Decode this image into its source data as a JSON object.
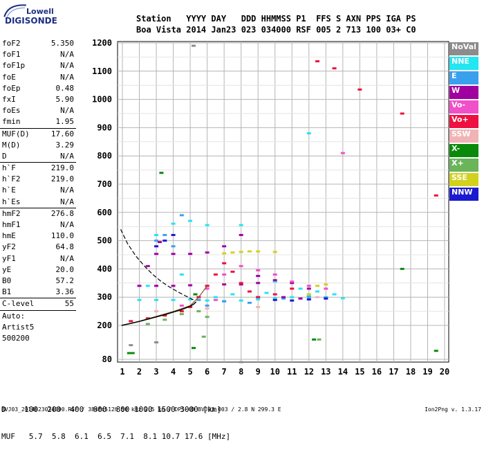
{
  "logo": {
    "line1": "Lowell",
    "line2": "DIGISONDE"
  },
  "header": {
    "row1": "Station   YYYY DAY   DDD HHMMSS P1  FFS S AXN PPS IGA PS",
    "row2": "Boa Vista 2014 Jan23 023 034000 RSF 005 2 713 100 03+ C0"
  },
  "params": [
    {
      "label": "foF2",
      "value": "5.350"
    },
    {
      "label": "foF1",
      "value": "N/A"
    },
    {
      "label": "foF1p",
      "value": "N/A"
    },
    {
      "label": "foE",
      "value": "N/A"
    },
    {
      "label": "foEp",
      "value": "0.48"
    },
    {
      "label": "fxI",
      "value": "5.90"
    },
    {
      "label": "foEs",
      "value": "N/A"
    },
    {
      "label": "fmin",
      "value": "1.95"
    },
    {
      "sep": true
    },
    {
      "label": "MUF(D)",
      "value": "17.60"
    },
    {
      "label": "M(D)",
      "value": "3.29"
    },
    {
      "label": "D",
      "value": "N/A"
    },
    {
      "sep": true
    },
    {
      "label": "h`F",
      "value": "219.0"
    },
    {
      "label": "h`F2",
      "value": "219.0"
    },
    {
      "label": "h`E",
      "value": "N/A"
    },
    {
      "label": "h`Es",
      "value": "N/A"
    },
    {
      "sep": true
    },
    {
      "label": "hmF2",
      "value": "276.8"
    },
    {
      "label": "hmF1",
      "value": "N/A"
    },
    {
      "label": "hmE",
      "value": "110.0"
    },
    {
      "label": "yF2",
      "value": "64.8"
    },
    {
      "label": "yF1",
      "value": "N/A"
    },
    {
      "label": "yE",
      "value": "20.0"
    },
    {
      "label": "B0",
      "value": "57.2"
    },
    {
      "label": "B1",
      "value": "3.36"
    },
    {
      "sep": true
    },
    {
      "label": "C-level",
      "value": "55"
    },
    {
      "sep": true
    },
    {
      "label": "Auto:",
      "value": ""
    },
    {
      "label": "Artist5",
      "value": ""
    },
    {
      "label": "500200",
      "value": ""
    }
  ],
  "legend": [
    {
      "label": "NoVal",
      "color": "#8c8c8c"
    },
    {
      "label": "NNE",
      "color": "#22e6f0"
    },
    {
      "label": "E",
      "color": "#3aa0ee"
    },
    {
      "label": "W",
      "color": "#a000a0"
    },
    {
      "label": "Vo-",
      "color": "#f050c8"
    },
    {
      "label": "Vo+",
      "color": "#ee1040"
    },
    {
      "label": "SSW",
      "color": "#f0b4b4"
    },
    {
      "label": "X-",
      "color": "#0a8a0a"
    },
    {
      "label": "X+",
      "color": "#6ab45a"
    },
    {
      "label": "SSE",
      "color": "#d2d21e"
    },
    {
      "label": "NNW",
      "color": "#1a1ad0"
    }
  ],
  "bottom": {
    "d_row": "D    100  200  400  600  800 1000 1500 3000 [km]",
    "muf_row": "MUF   5.7  5.8  6.1  6.5  7.1  8.1 10.7 17.6 [MHz]"
  },
  "footer": {
    "left": "BVJ03_2014023034000.RSF / 384fx512h 50 kHz 2.5 km / DPS-4D BVJ03 003 / 2.8 N 299.3 E",
    "right": "Ion2Png v. 1.3.17"
  },
  "chart_data": {
    "type": "scatter",
    "title": "",
    "xlabel": "",
    "ylabel": "",
    "x_ticks": [
      1,
      2,
      3,
      4,
      5,
      6,
      7,
      8,
      9,
      10,
      11,
      12,
      13,
      14,
      15,
      16,
      17,
      18,
      19,
      20
    ],
    "y_ticks": [
      80,
      200,
      300,
      400,
      500,
      600,
      700,
      800,
      900,
      1000,
      1100,
      1200
    ],
    "xlim": [
      1,
      20
    ],
    "ylim": [
      80,
      1200
    ],
    "grid": true,
    "series": [
      {
        "name": "NNE",
        "color": "#22e6f0",
        "points": [
          [
            2.0,
            290
          ],
          [
            3.0,
            290
          ],
          [
            4.0,
            290
          ],
          [
            5.0,
            292
          ],
          [
            6.0,
            288
          ],
          [
            7.0,
            286
          ],
          [
            8.0,
            288
          ],
          [
            9.0,
            292
          ],
          [
            10.0,
            296
          ],
          [
            11.0,
            300
          ],
          [
            12.0,
            305
          ],
          [
            13.0,
            300
          ],
          [
            14.0,
            296
          ],
          [
            3.0,
            520
          ],
          [
            4.0,
            560
          ],
          [
            5.0,
            570
          ],
          [
            6.0,
            555
          ],
          [
            8.0,
            555
          ],
          [
            10.0,
            355
          ],
          [
            11.5,
            330
          ],
          [
            12.5,
            320
          ],
          [
            2.5,
            340
          ],
          [
            4.5,
            380
          ],
          [
            6.5,
            300
          ],
          [
            7.5,
            310
          ],
          [
            9.5,
            315
          ],
          [
            13.5,
            310
          ],
          [
            12.0,
            880
          ]
        ]
      },
      {
        "name": "E",
        "color": "#3aa0ee",
        "points": [
          [
            3.0,
            500
          ],
          [
            3.5,
            520
          ],
          [
            4.0,
            480
          ],
          [
            4.5,
            590
          ],
          [
            5.5,
            290
          ],
          [
            7.0,
            285
          ],
          [
            9.0,
            300
          ],
          [
            10.5,
            295
          ],
          [
            12.0,
            300
          ],
          [
            13.0,
            298
          ],
          [
            8.5,
            280
          ],
          [
            6.0,
            270
          ]
        ]
      },
      {
        "name": "W",
        "color": "#a000a0",
        "points": [
          [
            2.0,
            340
          ],
          [
            3.0,
            340
          ],
          [
            4.0,
            340
          ],
          [
            5.0,
            342
          ],
          [
            6.0,
            340
          ],
          [
            7.0,
            345
          ],
          [
            8.0,
            345
          ],
          [
            9.0,
            350
          ],
          [
            10.0,
            360
          ],
          [
            11.0,
            350
          ],
          [
            12.0,
            330
          ],
          [
            3.0,
            453
          ],
          [
            4.0,
            453
          ],
          [
            5.0,
            453
          ],
          [
            6.0,
            458
          ],
          [
            7.0,
            480
          ],
          [
            8.0,
            520
          ],
          [
            3.2,
            495
          ],
          [
            2.5,
            410
          ],
          [
            10.5,
            300
          ],
          [
            11.5,
            295
          ],
          [
            9.0,
            375
          ]
        ]
      },
      {
        "name": "Vo-",
        "color": "#f050c8",
        "points": [
          [
            4.5,
            270
          ],
          [
            5.5,
            300
          ],
          [
            6.0,
            330
          ],
          [
            7.0,
            380
          ],
          [
            8.0,
            410
          ],
          [
            9.0,
            395
          ],
          [
            10.0,
            380
          ],
          [
            11.0,
            355
          ],
          [
            12.0,
            340
          ],
          [
            13.0,
            330
          ],
          [
            14.0,
            810
          ],
          [
            6.5,
            290
          ]
        ]
      },
      {
        "name": "Vo+",
        "color": "#ee1040",
        "points": [
          [
            1.5,
            215
          ],
          [
            2.5,
            225
          ],
          [
            3.5,
            235
          ],
          [
            4.5,
            250
          ],
          [
            5.0,
            265
          ],
          [
            5.5,
            300
          ],
          [
            6.0,
            340
          ],
          [
            6.5,
            380
          ],
          [
            7.0,
            420
          ],
          [
            7.5,
            390
          ],
          [
            8.0,
            350
          ],
          [
            8.5,
            320
          ],
          [
            9.0,
            300
          ],
          [
            10.0,
            310
          ],
          [
            11.0,
            330
          ],
          [
            12.5,
            1135
          ],
          [
            13.5,
            1110
          ],
          [
            15.0,
            1035
          ],
          [
            17.5,
            950
          ],
          [
            19.5,
            660
          ]
        ]
      },
      {
        "name": "SSW",
        "color": "#f0b4b4",
        "points": [
          [
            3.0,
            250
          ],
          [
            6.0,
            260
          ],
          [
            9.0,
            265
          ],
          [
            12.5,
            300
          ]
        ]
      },
      {
        "name": "X-",
        "color": "#0a8a0a",
        "points": [
          [
            1.4,
            102
          ],
          [
            1.6,
            102
          ],
          [
            3.3,
            740
          ],
          [
            5.3,
            310
          ],
          [
            5.2,
            120
          ],
          [
            12.3,
            150
          ],
          [
            17.5,
            400
          ],
          [
            19.5,
            110
          ]
        ]
      },
      {
        "name": "X+",
        "color": "#6ab45a",
        "points": [
          [
            2.5,
            205
          ],
          [
            3.5,
            220
          ],
          [
            4.5,
            240
          ],
          [
            5.5,
            250
          ],
          [
            6.0,
            230
          ],
          [
            12.0,
            310
          ],
          [
            12.6,
            150
          ],
          [
            5.8,
            160
          ]
        ]
      },
      {
        "name": "SSE",
        "color": "#d2d21e",
        "points": [
          [
            7.0,
            455
          ],
          [
            7.5,
            458
          ],
          [
            8.0,
            460
          ],
          [
            8.5,
            462
          ],
          [
            9.0,
            462
          ],
          [
            10.0,
            460
          ],
          [
            12.0,
            310
          ],
          [
            12.5,
            340
          ],
          [
            13.0,
            345
          ]
        ]
      },
      {
        "name": "NNW",
        "color": "#1a1ad0",
        "points": [
          [
            3.0,
            480
          ],
          [
            3.5,
            500
          ],
          [
            4.0,
            520
          ],
          [
            10.0,
            290
          ],
          [
            11.0,
            288
          ],
          [
            12.0,
            292
          ],
          [
            13.0,
            295
          ]
        ]
      },
      {
        "name": "NoVal",
        "color": "#8c8c8c",
        "points": [
          [
            1.5,
            130
          ],
          [
            3.0,
            140
          ],
          [
            5.2,
            1190
          ],
          [
            8.0,
            70
          ]
        ]
      }
    ],
    "trace": {
      "name": "profile",
      "color": "#000000",
      "points": [
        [
          0.95,
          200
        ],
        [
          1.5,
          207
        ],
        [
          2.0,
          214
        ],
        [
          2.5,
          222
        ],
        [
          3.0,
          230
        ],
        [
          3.5,
          238
        ],
        [
          4.0,
          247
        ],
        [
          4.5,
          256
        ],
        [
          5.0,
          268
        ],
        [
          5.2,
          275
        ],
        [
          5.35,
          283
        ]
      ]
    },
    "dashed": {
      "name": "extrapolation",
      "color": "#000000",
      "points": [
        [
          0.9,
          540
        ],
        [
          1.3,
          490
        ],
        [
          1.8,
          445
        ],
        [
          2.3,
          410
        ],
        [
          2.8,
          380
        ],
        [
          3.3,
          355
        ],
        [
          3.8,
          335
        ],
        [
          4.3,
          318
        ],
        [
          4.8,
          302
        ],
        [
          5.2,
          290
        ]
      ]
    },
    "fit": {
      "name": "fit",
      "color": "#7a5a20",
      "points": [
        [
          1.0,
          200
        ],
        [
          2.0,
          215
        ],
        [
          3.0,
          232
        ],
        [
          4.0,
          249
        ],
        [
          5.0,
          270
        ],
        [
          5.5,
          300
        ],
        [
          6.0,
          340
        ]
      ]
    }
  }
}
